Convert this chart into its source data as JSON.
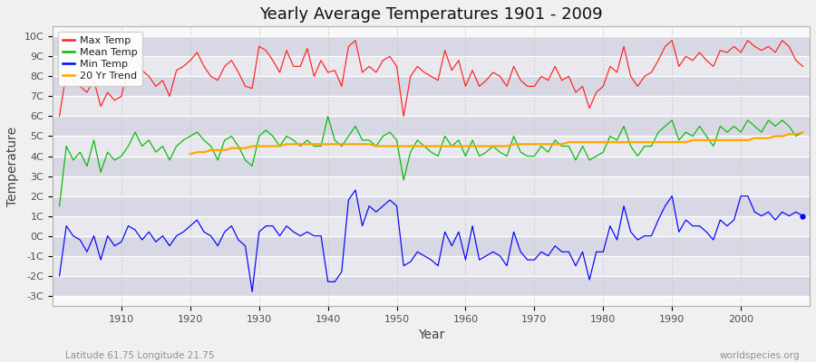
{
  "title": "Yearly Average Temperatures 1901 - 2009",
  "xlabel": "Year",
  "ylabel": "Temperature",
  "subtitle_left": "Latitude 61.75 Longitude 21.75",
  "subtitle_right": "worldspecies.org",
  "legend_labels": [
    "Max Temp",
    "Mean Temp",
    "Min Temp",
    "20 Yr Trend"
  ],
  "colors": {
    "max": "#ff2020",
    "mean": "#00bb00",
    "min": "#0000ff",
    "trend": "#ffa500",
    "fig_bg": "#f0f0f0",
    "plot_bg": "#f8f8f8",
    "band_light": "#e8e8ee",
    "band_dark": "#d8d8e4",
    "grid_h": "#ccccdd",
    "grid_v": "#cccccc"
  },
  "yticks": [
    "-3C",
    "-2C",
    "-1C",
    "0C",
    "1C",
    "2C",
    "3C",
    "4C",
    "5C",
    "6C",
    "7C",
    "8C",
    "9C",
    "10C"
  ],
  "yvalues": [
    -3,
    -2,
    -1,
    0,
    1,
    2,
    3,
    4,
    5,
    6,
    7,
    8,
    9,
    10
  ],
  "ylim": [
    -3.5,
    10.5
  ],
  "xlim": [
    1900,
    2010
  ],
  "xtick_vals": [
    1910,
    1920,
    1930,
    1940,
    1950,
    1960,
    1970,
    1980,
    1990,
    2000
  ],
  "years": [
    1901,
    1902,
    1903,
    1904,
    1905,
    1906,
    1907,
    1908,
    1909,
    1910,
    1911,
    1912,
    1913,
    1914,
    1915,
    1916,
    1917,
    1918,
    1919,
    1920,
    1921,
    1922,
    1923,
    1924,
    1925,
    1926,
    1927,
    1928,
    1929,
    1930,
    1931,
    1932,
    1933,
    1934,
    1935,
    1936,
    1937,
    1938,
    1939,
    1940,
    1941,
    1942,
    1943,
    1944,
    1945,
    1946,
    1947,
    1948,
    1949,
    1950,
    1951,
    1952,
    1953,
    1954,
    1955,
    1956,
    1957,
    1958,
    1959,
    1960,
    1961,
    1962,
    1963,
    1964,
    1965,
    1966,
    1967,
    1968,
    1969,
    1970,
    1971,
    1972,
    1973,
    1974,
    1975,
    1976,
    1977,
    1978,
    1979,
    1980,
    1981,
    1982,
    1983,
    1984,
    1985,
    1986,
    1987,
    1988,
    1989,
    1990,
    1991,
    1992,
    1993,
    1994,
    1995,
    1996,
    1997,
    1998,
    1999,
    2000,
    2001,
    2002,
    2003,
    2004,
    2005,
    2006,
    2007,
    2008,
    2009
  ],
  "max_temp": [
    6.0,
    8.2,
    7.8,
    7.5,
    7.2,
    7.8,
    6.5,
    7.2,
    6.8,
    7.0,
    8.5,
    9.1,
    8.3,
    8.0,
    7.5,
    7.8,
    7.0,
    8.3,
    8.5,
    8.8,
    9.2,
    8.5,
    8.0,
    7.8,
    8.5,
    8.8,
    8.2,
    7.5,
    7.4,
    9.5,
    9.3,
    8.8,
    8.2,
    9.3,
    8.5,
    8.5,
    9.4,
    8.0,
    8.8,
    8.2,
    8.3,
    7.5,
    9.5,
    9.8,
    8.2,
    8.5,
    8.2,
    8.8,
    9.0,
    8.5,
    6.0,
    8.0,
    8.5,
    8.2,
    8.0,
    7.8,
    9.3,
    8.3,
    8.8,
    7.5,
    8.3,
    7.5,
    7.8,
    8.2,
    8.0,
    7.5,
    8.5,
    7.8,
    7.5,
    7.5,
    8.0,
    7.8,
    8.5,
    7.8,
    8.0,
    7.2,
    7.5,
    6.4,
    7.2,
    7.5,
    8.5,
    8.2,
    9.5,
    8.0,
    7.5,
    8.0,
    8.2,
    8.8,
    9.5,
    9.8,
    8.5,
    9.0,
    8.8,
    9.2,
    8.8,
    8.5,
    9.3,
    9.2,
    9.5,
    9.2,
    9.8,
    9.5,
    9.3,
    9.5,
    9.2,
    9.8,
    9.5,
    8.8,
    8.5
  ],
  "mean_temp": [
    1.5,
    4.5,
    3.8,
    4.2,
    3.5,
    4.8,
    3.2,
    4.2,
    3.8,
    4.0,
    4.5,
    5.2,
    4.5,
    4.8,
    4.2,
    4.5,
    3.8,
    4.5,
    4.8,
    5.0,
    5.2,
    4.8,
    4.5,
    3.8,
    4.8,
    5.0,
    4.5,
    3.8,
    3.5,
    5.0,
    5.3,
    5.0,
    4.5,
    5.0,
    4.8,
    4.5,
    4.8,
    4.5,
    4.5,
    6.0,
    4.8,
    4.5,
    5.0,
    5.5,
    4.8,
    4.8,
    4.5,
    5.0,
    5.2,
    4.8,
    2.8,
    4.2,
    4.8,
    4.5,
    4.2,
    4.0,
    5.0,
    4.5,
    4.8,
    4.0,
    4.8,
    4.0,
    4.2,
    4.5,
    4.2,
    4.0,
    5.0,
    4.2,
    4.0,
    4.0,
    4.5,
    4.2,
    4.8,
    4.5,
    4.5,
    3.8,
    4.5,
    3.8,
    4.0,
    4.2,
    5.0,
    4.8,
    5.5,
    4.5,
    4.0,
    4.5,
    4.5,
    5.2,
    5.5,
    5.8,
    4.8,
    5.2,
    5.0,
    5.5,
    5.0,
    4.5,
    5.5,
    5.2,
    5.5,
    5.2,
    5.8,
    5.5,
    5.2,
    5.8,
    5.5,
    5.8,
    5.5,
    5.0,
    5.2
  ],
  "min_temp": [
    -2.0,
    0.5,
    0.0,
    -0.2,
    -0.8,
    0.0,
    -1.2,
    0.0,
    -0.5,
    -0.3,
    0.5,
    0.3,
    -0.2,
    0.2,
    -0.3,
    0.0,
    -0.5,
    0.0,
    0.2,
    0.5,
    0.8,
    0.2,
    0.0,
    -0.5,
    0.2,
    0.5,
    -0.2,
    -0.5,
    -2.8,
    0.2,
    0.5,
    0.5,
    0.0,
    0.5,
    0.2,
    0.0,
    0.2,
    0.0,
    0.0,
    -2.3,
    -2.3,
    -1.8,
    1.8,
    2.3,
    0.5,
    1.5,
    1.2,
    1.5,
    1.8,
    1.5,
    -1.5,
    -1.3,
    -0.8,
    -1.0,
    -1.2,
    -1.5,
    0.2,
    -0.5,
    0.2,
    -1.2,
    0.5,
    -1.2,
    -1.0,
    -0.8,
    -1.0,
    -1.5,
    0.2,
    -0.8,
    -1.2,
    -1.2,
    -0.8,
    -1.0,
    -0.5,
    -0.8,
    -0.8,
    -1.5,
    -0.8,
    -2.2,
    -0.8,
    -0.8,
    0.5,
    -0.2,
    1.5,
    0.2,
    -0.2,
    0.0,
    0.0,
    0.8,
    1.5,
    2.0,
    0.2,
    0.8,
    0.5,
    0.5,
    0.2,
    -0.2,
    0.8,
    0.5,
    0.8,
    2.0,
    2.0,
    1.2,
    1.0,
    1.2,
    0.8,
    1.2,
    1.0,
    1.2,
    1.0
  ],
  "trend_start_year": 1920,
  "trend": [
    4.1,
    4.2,
    4.2,
    4.3,
    4.3,
    4.3,
    4.4,
    4.4,
    4.4,
    4.5,
    4.5,
    4.5,
    4.5,
    4.5,
    4.6,
    4.6,
    4.6,
    4.6,
    4.6,
    4.6,
    4.6,
    4.6,
    4.6,
    4.6,
    4.6,
    4.6,
    4.6,
    4.5,
    4.5,
    4.5,
    4.5,
    4.5,
    4.5,
    4.5,
    4.5,
    4.5,
    4.5,
    4.5,
    4.5,
    4.5,
    4.5,
    4.5,
    4.5,
    4.5,
    4.5,
    4.5,
    4.5,
    4.6,
    4.6,
    4.6,
    4.6,
    4.6,
    4.6,
    4.6,
    4.6,
    4.7,
    4.7,
    4.7,
    4.7,
    4.7,
    4.7,
    4.7,
    4.7,
    4.7,
    4.7,
    4.7,
    4.7,
    4.7,
    4.7,
    4.7,
    4.7,
    4.7,
    4.7,
    4.8,
    4.8,
    4.8,
    4.8,
    4.8,
    4.8,
    4.8,
    4.8,
    4.8,
    4.9,
    4.9,
    4.9,
    5.0,
    5.0,
    5.1,
    5.1,
    5.2
  ]
}
